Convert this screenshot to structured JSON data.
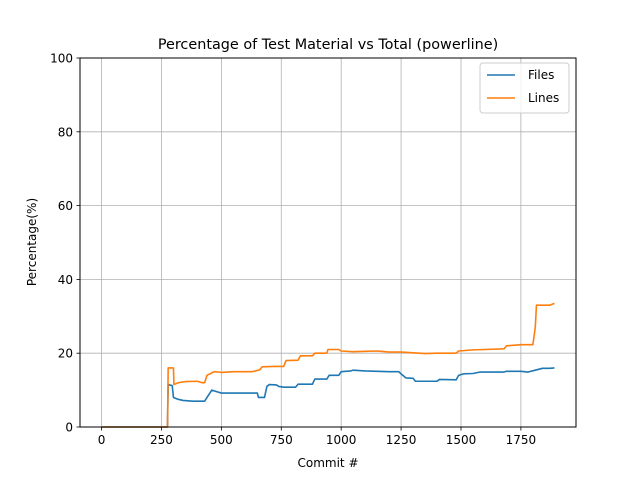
{
  "chart_data": {
    "type": "line",
    "title": "Percentage of Test Material vs Total (powerline)",
    "xlabel": "Commit #",
    "ylabel": "Percentage(%)",
    "xlim": [
      -90,
      1980
    ],
    "ylim": [
      0,
      100
    ],
    "xticks": [
      0,
      250,
      500,
      750,
      1000,
      1250,
      1500,
      1750
    ],
    "yticks": [
      0,
      20,
      40,
      60,
      80,
      100
    ],
    "grid": true,
    "legend_position": "top-right",
    "series": [
      {
        "name": "Files",
        "color": "#1f77b4",
        "points": [
          [
            0,
            0
          ],
          [
            275,
            0
          ],
          [
            278,
            11.5
          ],
          [
            295,
            11.2
          ],
          [
            300,
            8
          ],
          [
            320,
            7.5
          ],
          [
            340,
            7.2
          ],
          [
            380,
            7
          ],
          [
            430,
            7
          ],
          [
            440,
            8
          ],
          [
            450,
            9
          ],
          [
            460,
            10
          ],
          [
            480,
            9.6
          ],
          [
            500,
            9.2
          ],
          [
            650,
            9.2
          ],
          [
            655,
            8
          ],
          [
            680,
            8
          ],
          [
            690,
            11
          ],
          [
            700,
            11.5
          ],
          [
            730,
            11.4
          ],
          [
            740,
            11
          ],
          [
            760,
            10.8
          ],
          [
            810,
            10.8
          ],
          [
            820,
            11.6
          ],
          [
            880,
            11.6
          ],
          [
            890,
            13
          ],
          [
            940,
            13
          ],
          [
            950,
            14
          ],
          [
            990,
            14
          ],
          [
            1000,
            15
          ],
          [
            1040,
            15.2
          ],
          [
            1050,
            15.4
          ],
          [
            1100,
            15.2
          ],
          [
            1150,
            15.1
          ],
          [
            1200,
            15
          ],
          [
            1240,
            15
          ],
          [
            1250,
            14.4
          ],
          [
            1270,
            13.3
          ],
          [
            1300,
            13.2
          ],
          [
            1310,
            12.4
          ],
          [
            1400,
            12.4
          ],
          [
            1410,
            12.9
          ],
          [
            1480,
            12.8
          ],
          [
            1490,
            14
          ],
          [
            1510,
            14.4
          ],
          [
            1550,
            14.5
          ],
          [
            1580,
            14.9
          ],
          [
            1680,
            14.9
          ],
          [
            1690,
            15.1
          ],
          [
            1750,
            15.1
          ],
          [
            1780,
            14.9
          ],
          [
            1810,
            15.4
          ],
          [
            1840,
            15.9
          ],
          [
            1870,
            15.9
          ],
          [
            1890,
            16
          ]
        ]
      },
      {
        "name": "Lines",
        "color": "#ff7f0e",
        "points": [
          [
            0,
            0
          ],
          [
            275,
            0
          ],
          [
            278,
            16
          ],
          [
            300,
            16
          ],
          [
            302,
            11.5
          ],
          [
            320,
            12
          ],
          [
            350,
            12.3
          ],
          [
            400,
            12.4
          ],
          [
            420,
            12
          ],
          [
            430,
            12
          ],
          [
            440,
            14
          ],
          [
            455,
            14.5
          ],
          [
            470,
            15
          ],
          [
            500,
            14.8
          ],
          [
            550,
            15
          ],
          [
            630,
            15
          ],
          [
            660,
            15.5
          ],
          [
            670,
            16.3
          ],
          [
            720,
            16.4
          ],
          [
            760,
            16.4
          ],
          [
            770,
            18
          ],
          [
            820,
            18.1
          ],
          [
            830,
            19.3
          ],
          [
            880,
            19.3
          ],
          [
            890,
            20
          ],
          [
            940,
            20
          ],
          [
            945,
            21
          ],
          [
            990,
            21
          ],
          [
            1000,
            20.6
          ],
          [
            1050,
            20.4
          ],
          [
            1100,
            20.5
          ],
          [
            1150,
            20.6
          ],
          [
            1200,
            20.3
          ],
          [
            1250,
            20.3
          ],
          [
            1300,
            20.1
          ],
          [
            1350,
            19.9
          ],
          [
            1400,
            20
          ],
          [
            1480,
            20
          ],
          [
            1490,
            20.6
          ],
          [
            1550,
            20.9
          ],
          [
            1600,
            21
          ],
          [
            1680,
            21.2
          ],
          [
            1690,
            22
          ],
          [
            1750,
            22.3
          ],
          [
            1800,
            22.3
          ],
          [
            1810,
            27
          ],
          [
            1815,
            33
          ],
          [
            1870,
            33
          ],
          [
            1890,
            33.5
          ]
        ]
      }
    ]
  }
}
